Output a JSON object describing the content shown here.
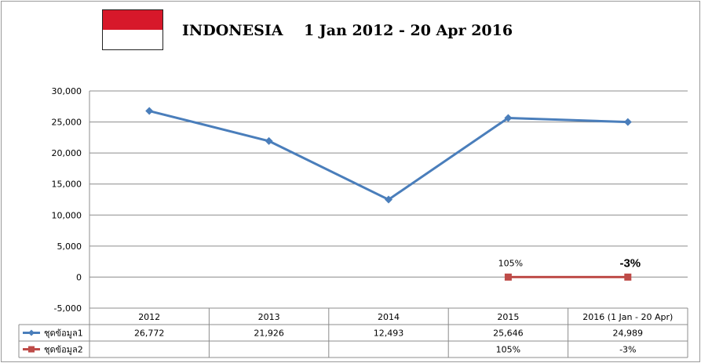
{
  "header": {
    "title": "INDONESIA    1 Jan 2012 - 20 Apr 2016"
  },
  "chart_data": {
    "type": "line",
    "categories": [
      "2012",
      "2013",
      "2014",
      "2015",
      "2016 (1 Jan - 20 Apr)"
    ],
    "ylim": [
      -5000,
      30000
    ],
    "yticks": [
      "30,000",
      "25,000",
      "20,000",
      "15,000",
      "10,000",
      "5,000",
      "0",
      "-5,000"
    ],
    "grid": true,
    "series": [
      {
        "name": "ชุดข้อมูล1",
        "color": "#4a7ebb",
        "marker": "diamond",
        "values": [
          26772,
          21926,
          12493,
          25646,
          24989
        ],
        "table_values": [
          "26,772",
          "21,926",
          "12,493",
          "25,646",
          "24,989"
        ]
      },
      {
        "name": "ชุดข้อมูล2",
        "color": "#be4b48",
        "marker": "square",
        "values": [
          null,
          null,
          null,
          0,
          0
        ],
        "table_values": [
          "",
          "",
          "",
          "105%",
          "-3%"
        ]
      }
    ],
    "annotations": [
      {
        "index": 3,
        "text": "105%",
        "style": "small"
      },
      {
        "index": 4,
        "text": "-3%",
        "style": "big"
      }
    ]
  }
}
